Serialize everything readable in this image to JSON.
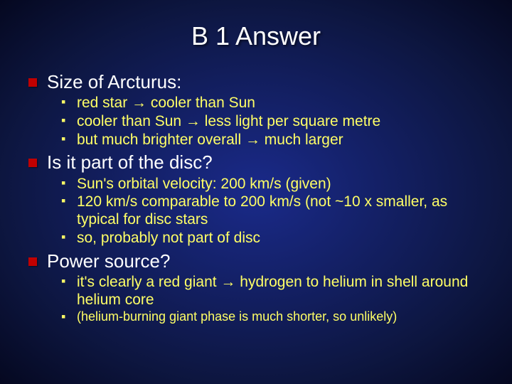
{
  "slide": {
    "title": "B 1 Answer",
    "background": {
      "center_color": "#1a2a8a",
      "mid_color": "#0d1640",
      "edge_color": "#050820"
    },
    "colors": {
      "title_text": "#ffffff",
      "level1_text": "#ffffff",
      "level1_bullet": "#c00000",
      "level2_text": "#ffff66",
      "level2_bullet": "#ffff66"
    },
    "typography": {
      "title_fontsize": 36,
      "level1_fontsize": 26,
      "level2_fontsize": 21,
      "level2_small_fontsize": 18,
      "font_family": "Arial"
    },
    "sections": [
      {
        "heading": "Size of Arcturus:",
        "items": [
          "red star → cooler than Sun",
          "cooler than Sun → less light per square metre",
          "but much brighter overall → much larger"
        ]
      },
      {
        "heading": "Is it part of the disc?",
        "items": [
          "Sun's orbital velocity: 200 km/s (given)",
          "120 km/s comparable to 200 km/s (not ~10 x smaller, as typical for disc stars",
          "so, probably not part of disc"
        ]
      },
      {
        "heading": "Power source?",
        "items": [
          "it's clearly a red giant → hydrogen to helium in shell around helium core"
        ],
        "items_small": [
          "(helium-burning giant phase is much shorter, so unlikely)"
        ]
      }
    ]
  }
}
